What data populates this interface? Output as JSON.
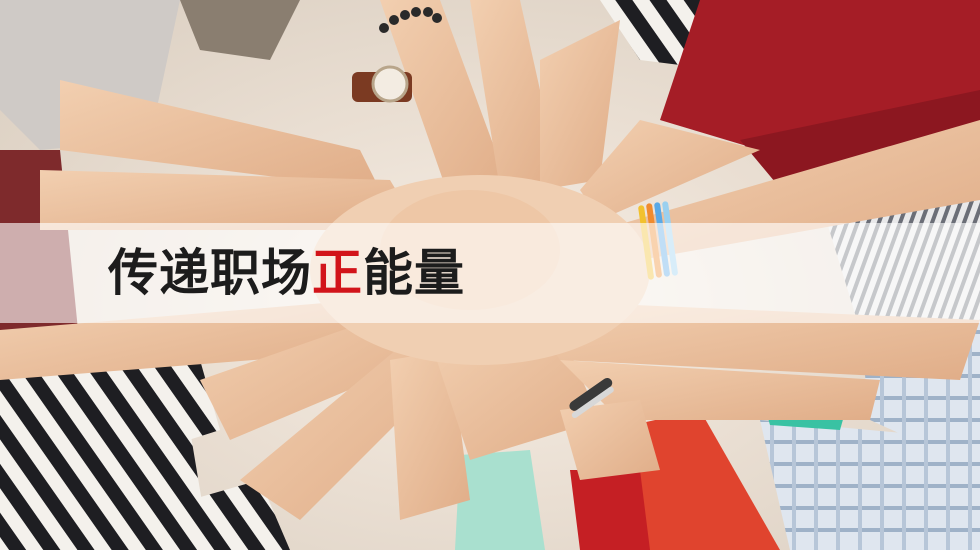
{
  "headline": {
    "part1": "传递职场",
    "highlight": "正",
    "part2": "能量"
  },
  "colors": {
    "highlight": "#d2141a",
    "text": "#1c1c1c",
    "banner": "rgba(255,255,255,0.62)"
  }
}
